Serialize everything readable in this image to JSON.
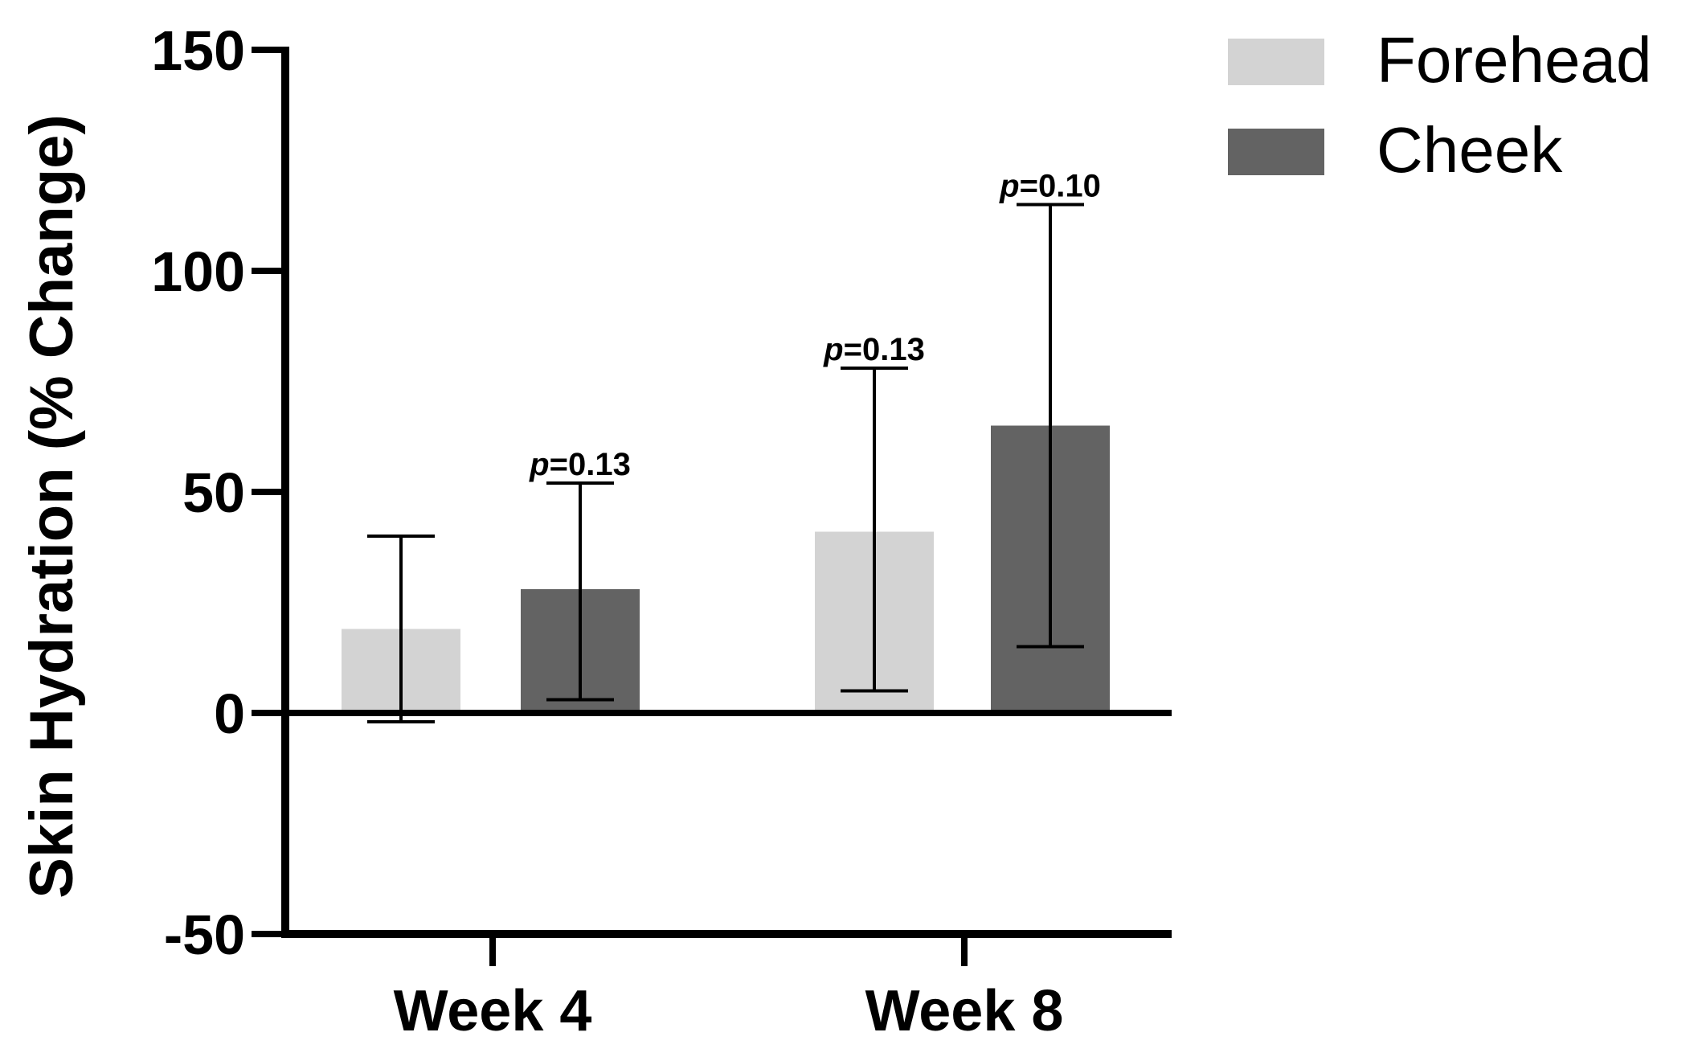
{
  "chart_data": {
    "type": "bar",
    "title": "",
    "xlabel": "",
    "ylabel": "Skin Hydration (% Change)",
    "ylim": [
      -50,
      150
    ],
    "yticks": [
      "-50",
      "0",
      "50",
      "100",
      "150"
    ],
    "ytick_values": [
      -50,
      0,
      50,
      100,
      150
    ],
    "categories": [
      "Week 4",
      "Week 8"
    ],
    "series": [
      {
        "name": "Forehead",
        "color": "#d3d3d3",
        "values": [
          19,
          41
        ],
        "error_low": [
          -2,
          5
        ],
        "error_high": [
          40,
          78
        ]
      },
      {
        "name": "Cheek",
        "color": "#636363",
        "values": [
          28,
          65
        ],
        "error_low": [
          3,
          15
        ],
        "error_high": [
          52,
          115
        ]
      }
    ],
    "annotations": [
      {
        "series": 1,
        "category": 0,
        "p_label": "p",
        "value_text": "=0.13"
      },
      {
        "series": 0,
        "category": 1,
        "p_label": "p",
        "value_text": "=0.13"
      },
      {
        "series": 1,
        "category": 1,
        "p_label": "p",
        "value_text": "=0.10"
      }
    ],
    "legend_position": "top-right",
    "grid": false
  }
}
